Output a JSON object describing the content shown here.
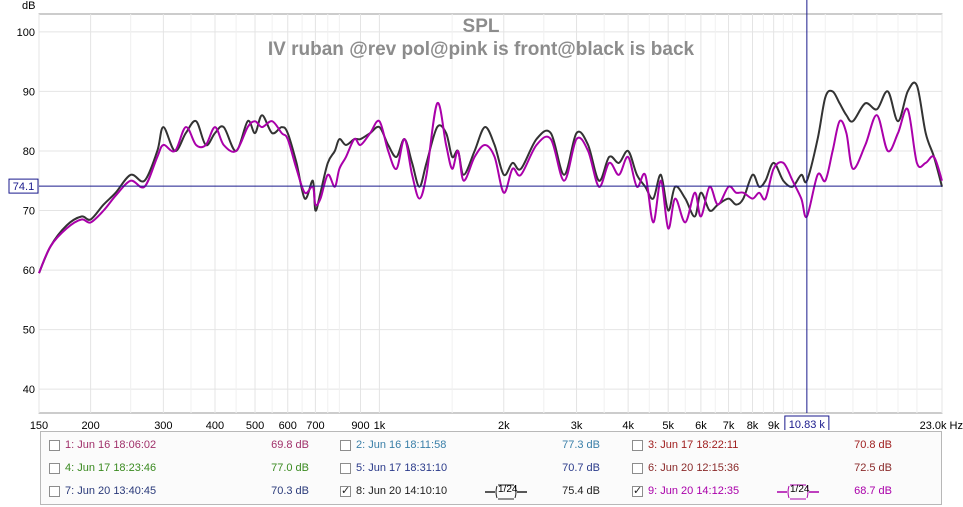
{
  "chart_data": {
    "type": "line",
    "title": "SPL",
    "subtitle": "IV ruban @rev pol@pink is front@black is back",
    "ylabel": "dB",
    "xunit": "Hz",
    "xscale": "log",
    "xlim": [
      150,
      23000
    ],
    "ylim": [
      36,
      103
    ],
    "x_ticks": [
      {
        "v": 150,
        "label": "150"
      },
      {
        "v": 200,
        "label": "200"
      },
      {
        "v": 300,
        "label": "300"
      },
      {
        "v": 400,
        "label": "400"
      },
      {
        "v": 500,
        "label": "500"
      },
      {
        "v": 600,
        "label": "600"
      },
      {
        "v": 700,
        "label": "700"
      },
      {
        "v": 900,
        "label": "900"
      },
      {
        "v": 1000,
        "label": "1k"
      },
      {
        "v": 2000,
        "label": "2k"
      },
      {
        "v": 3000,
        "label": "3k"
      },
      {
        "v": 4000,
        "label": "4k"
      },
      {
        "v": 5000,
        "label": "5k"
      },
      {
        "v": 6000,
        "label": "6k"
      },
      {
        "v": 7000,
        "label": "7k"
      },
      {
        "v": 8000,
        "label": "8k"
      },
      {
        "v": 9000,
        "label": "9k"
      },
      {
        "v": 23000,
        "label": "23.0k Hz"
      }
    ],
    "y_ticks": [
      {
        "v": 40,
        "label": "40"
      },
      {
        "v": 50,
        "label": "50"
      },
      {
        "v": 60,
        "label": "60"
      },
      {
        "v": 70,
        "label": "70"
      },
      {
        "v": 80,
        "label": "80"
      },
      {
        "v": 90,
        "label": "90"
      },
      {
        "v": 100,
        "label": "100"
      }
    ],
    "cursor": {
      "x": 10830,
      "x_label": "10.83 k",
      "y": 74.1,
      "y_label": "74.1"
    },
    "grid": true,
    "series": [
      {
        "name": "8: Jun 20 14:10:10",
        "color": "#333333",
        "x": [
          150,
          160,
          175,
          190,
          200,
          215,
          230,
          250,
          270,
          290,
          300,
          320,
          340,
          360,
          380,
          400,
          420,
          450,
          480,
          500,
          520,
          550,
          580,
          600,
          630,
          660,
          690,
          700,
          720,
          750,
          780,
          800,
          830,
          870,
          900,
          950,
          1000,
          1050,
          1100,
          1150,
          1200,
          1250,
          1300,
          1380,
          1450,
          1500,
          1550,
          1600,
          1700,
          1800,
          1900,
          2000,
          2100,
          2200,
          2400,
          2600,
          2800,
          3000,
          3200,
          3400,
          3600,
          3800,
          4000,
          4200,
          4400,
          4600,
          4800,
          5000,
          5200,
          5500,
          5800,
          6000,
          6300,
          6600,
          7000,
          7300,
          7600,
          8000,
          8300,
          8600,
          9000,
          9500,
          10000,
          10500,
          10830,
          11500,
          12000,
          12500,
          13000,
          13500,
          14000,
          15000,
          16000,
          17000,
          18000,
          19000,
          20000,
          21000,
          22000,
          23000
        ],
        "y": [
          59.5,
          64,
          67.5,
          69,
          68.5,
          71,
          73,
          76,
          75,
          80,
          84,
          80,
          83,
          85,
          81,
          83,
          84,
          80,
          85,
          83,
          86,
          83,
          84,
          83,
          78,
          72,
          75,
          70,
          73,
          78,
          80,
          82,
          81,
          82,
          82,
          83,
          84,
          81,
          79,
          82,
          78,
          74,
          78,
          84,
          83,
          79,
          80,
          76,
          80,
          84,
          81,
          76,
          78,
          77,
          82,
          83,
          76,
          83,
          81,
          75,
          79,
          78,
          80,
          76,
          74,
          72,
          76,
          70,
          74,
          72,
          69,
          73,
          70,
          71,
          72,
          71,
          72,
          76,
          74,
          75,
          78,
          75,
          74,
          76,
          75,
          82,
          89,
          90,
          88,
          86,
          85,
          88,
          87,
          90,
          85,
          90,
          91,
          83,
          79,
          74
        ]
      },
      {
        "name": "9: Jun 20 14:12:35",
        "color": "#aa00aa",
        "x": [
          150,
          160,
          175,
          190,
          200,
          215,
          230,
          250,
          270,
          290,
          300,
          320,
          340,
          360,
          380,
          400,
          420,
          450,
          480,
          500,
          520,
          550,
          580,
          600,
          630,
          660,
          690,
          700,
          720,
          750,
          780,
          800,
          830,
          870,
          900,
          950,
          1000,
          1050,
          1100,
          1150,
          1200,
          1250,
          1300,
          1380,
          1450,
          1500,
          1550,
          1600,
          1700,
          1800,
          1900,
          2000,
          2100,
          2200,
          2400,
          2600,
          2800,
          3000,
          3200,
          3400,
          3600,
          3800,
          4000,
          4200,
          4400,
          4600,
          4800,
          5000,
          5200,
          5500,
          5800,
          6000,
          6300,
          6600,
          7000,
          7300,
          7600,
          8000,
          8300,
          8600,
          9000,
          9500,
          10000,
          10500,
          10830,
          11500,
          12000,
          12500,
          13000,
          13500,
          14000,
          15000,
          16000,
          17000,
          18000,
          19000,
          20000,
          21000,
          22000,
          23000
        ],
        "y": [
          59.5,
          64,
          67,
          68.5,
          68,
          70,
          72.5,
          75,
          74,
          79,
          81,
          80,
          84,
          81,
          81,
          84,
          81,
          80,
          84,
          85,
          84,
          85,
          83,
          82,
          77,
          73,
          74,
          71,
          72,
          76,
          74,
          77,
          79,
          82,
          81,
          83,
          85,
          80,
          77,
          82,
          76,
          72,
          76,
          88,
          81,
          77,
          80,
          75,
          79,
          81,
          79,
          73,
          77,
          76,
          81,
          82,
          75,
          82,
          80,
          74,
          78,
          76,
          79,
          74,
          76,
          68,
          75,
          67,
          72,
          68,
          73,
          69,
          74,
          71,
          74,
          73,
          73,
          72,
          73,
          72,
          77,
          78,
          75,
          72,
          69,
          76,
          75,
          80,
          85,
          83,
          77,
          81,
          86,
          80,
          83,
          87,
          78,
          78,
          79,
          75
        ]
      }
    ]
  },
  "legend": [
    {
      "name": "1: Jun 16 18:06:02",
      "value": "69.8 dB",
      "color": "#a0306a",
      "checked": false
    },
    {
      "name": "2: Jun 16 18:11:58",
      "value": "77.3 dB",
      "color": "#3a7fa8",
      "checked": false
    },
    {
      "name": "3: Jun 17 18:22:11",
      "value": "70.8 dB",
      "color": "#a02020",
      "checked": false
    },
    {
      "name": "4: Jun 17 18:23:46",
      "value": "77.0 dB",
      "color": "#3a8a20",
      "checked": false
    },
    {
      "name": "5: Jun 17 18:31:10",
      "value": "70.7 dB",
      "color": "#2a3a8a",
      "checked": false
    },
    {
      "name": "6: Jun 20 12:15:36",
      "value": "72.5 dB",
      "color": "#8a2a2a",
      "checked": false
    },
    {
      "name": "7: Jun 20 13:40:45",
      "value": "70.3 dB",
      "color": "#2a3a7a",
      "checked": false
    },
    {
      "name": "8: Jun 20 14:10:10",
      "value": "75.4 dB",
      "color": "#222222",
      "checked": true,
      "smoothing": "1/24"
    },
    {
      "name": "9: Jun 20 14:12:35",
      "value": "68.7 dB",
      "color": "#aa00aa",
      "checked": true,
      "smoothing": "1/24"
    }
  ]
}
